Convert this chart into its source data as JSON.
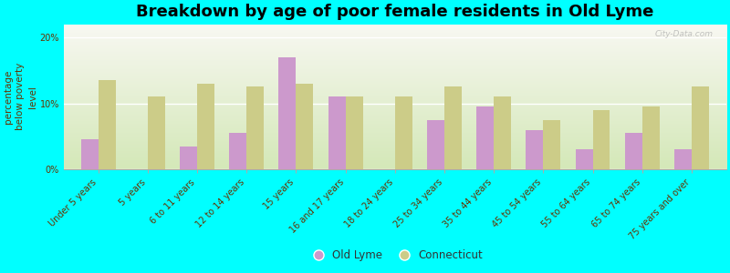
{
  "title": "Breakdown by age of poor female residents in Old Lyme",
  "ylabel": "percentage\nbelow poverty\nlevel",
  "categories": [
    "Under 5 years",
    "5 years",
    "6 to 11 years",
    "12 to 14 years",
    "15 years",
    "16 and 17 years",
    "18 to 24 years",
    "25 to 34 years",
    "35 to 44 years",
    "45 to 54 years",
    "55 to 64 years",
    "65 to 74 years",
    "75 years and over"
  ],
  "old_lyme_vals": [
    4.5,
    0.0,
    3.5,
    5.5,
    17.0,
    11.0,
    0.0,
    7.5,
    9.5,
    6.0,
    3.0,
    5.5,
    3.0
  ],
  "connecticut_vals": [
    13.5,
    11.0,
    13.0,
    12.5,
    13.0,
    11.0,
    11.0,
    12.5,
    11.0,
    7.5,
    9.0,
    9.5,
    12.5
  ],
  "old_lyme_color": "#cc99cc",
  "connecticut_color": "#cccc88",
  "background_color": "#00ffff",
  "ylim": [
    0,
    22
  ],
  "yticks": [
    0,
    10,
    20
  ],
  "ytick_labels": [
    "0%",
    "10%",
    "20%"
  ],
  "title_fontsize": 13,
  "axis_label_fontsize": 7.5,
  "tick_fontsize": 7,
  "label_color": "#663300",
  "legend_labels": [
    "Old Lyme",
    "Connecticut"
  ],
  "watermark": "City-Data.com"
}
